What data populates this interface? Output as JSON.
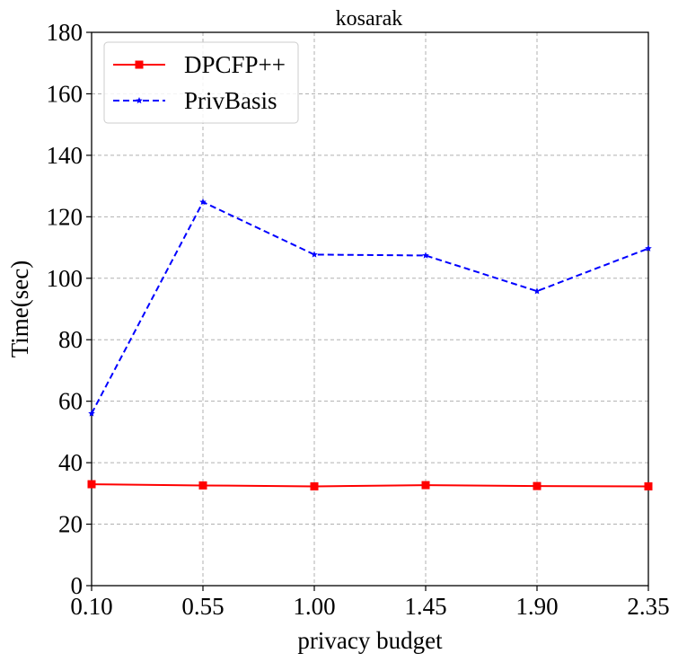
{
  "chart_data": {
    "type": "line",
    "title": "kosarak",
    "xlabel": "privacy budget",
    "ylabel": "Time(sec)",
    "categories": [
      "0.10",
      "0.55",
      "1.00",
      "1.45",
      "1.90",
      "2.35"
    ],
    "x": [
      0.1,
      0.55,
      1.0,
      1.45,
      1.9,
      2.35
    ],
    "xlim": [
      0.1,
      2.35
    ],
    "ylim": [
      0,
      180
    ],
    "yticks": [
      "0",
      "20",
      "40",
      "60",
      "80",
      "100",
      "120",
      "140",
      "160",
      "180"
    ],
    "grid": true,
    "legend_position": "top-left",
    "series": [
      {
        "name": "DPCFP++",
        "color": "#ff0000",
        "line_style": "solid",
        "marker": "square",
        "values": [
          33,
          32.6,
          32.3,
          32.7,
          32.4,
          32.3
        ]
      },
      {
        "name": "PrivBasis",
        "color": "#0000ff",
        "line_style": "dashed",
        "marker": "star",
        "values": [
          56,
          124.8,
          107.7,
          107.4,
          95.8,
          109.7
        ]
      }
    ]
  }
}
